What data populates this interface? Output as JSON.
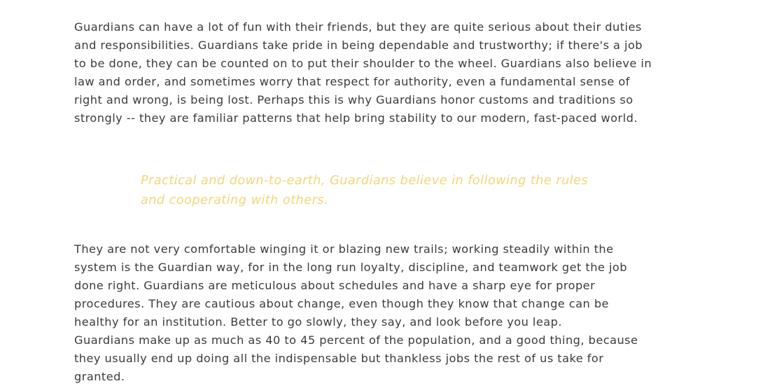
{
  "article": {
    "paragraph_1": "Guardians can have a lot of fun with their friends, but they are quite serious about their duties and responsibilities. Guardians take pride in being dependable and trustworthy; if there's a job to be done, they can be counted on to put their shoulder to the wheel. Guardians also believe in law and order, and sometimes worry that respect for authority, even a fundamental sense of right and wrong, is being lost. Perhaps this is why Guardians honor customs and traditions so strongly -- they are familiar patterns that help bring stability to our modern, fast-paced world.",
    "pull_quote": "Practical and down-to-earth, Guardians believe in following the rules and cooperating with others.",
    "paragraph_2": "They are not very comfortable winging it or blazing new trails; working steadily within the system is the Guardian way, for in the long run loyalty, discipline, and teamwork get the job done right. Guardians are meticulous about schedules and have a sharp eye for proper procedures. They are cautious about change, even though they know that change can be healthy for an institution. Better to go slowly, they say, and look before you leap.",
    "paragraph_3": "Guardians make up as much as 40 to 45 percent of the population, and a good thing, because they usually end up doing all the indispensable but thankless jobs the rest of us take for granted."
  },
  "colors": {
    "body_text": "#3c3c3c",
    "quote_text": "#f2d67a",
    "background": "#ffffff"
  }
}
